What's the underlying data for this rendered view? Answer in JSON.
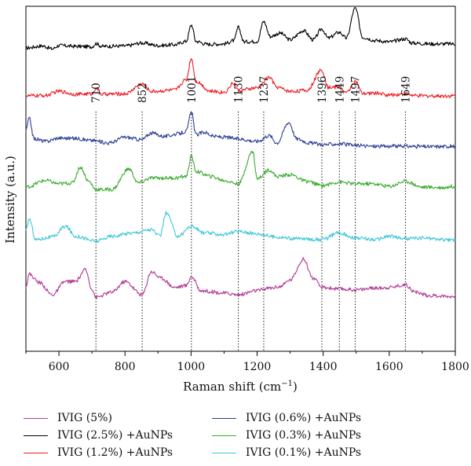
{
  "chart_data": {
    "type": "line",
    "xlabel": "Raman shift (cm",
    "xlabel_sup": "−1",
    "xlabel_end": ")",
    "ylabel": "Intensity (a.u.)",
    "xlim": [
      500,
      1800
    ],
    "xticks": [
      600,
      800,
      1000,
      1200,
      1400,
      1600,
      1800
    ],
    "peak_markers": [
      710,
      852,
      1001,
      1130,
      1237,
      1396,
      1449,
      1497,
      1649
    ],
    "peak_marker_lines": [
      712,
      852,
      1001,
      1143,
      1220,
      1396,
      1449,
      1497,
      1649
    ],
    "series": [
      {
        "name": "IVIG (2.5%) +AuNPs",
        "color": "#000000",
        "baseline": 0.86,
        "points": [
          [
            500,
            0.8
          ],
          [
            550,
            1.05
          ],
          [
            580,
            0.7
          ],
          [
            600,
            1.1
          ],
          [
            650,
            1.0
          ],
          [
            700,
            0.95
          ],
          [
            712,
            1.35
          ],
          [
            730,
            1.0
          ],
          [
            800,
            1.05
          ],
          [
            852,
            1.4
          ],
          [
            900,
            1.1
          ],
          [
            950,
            1.2
          ],
          [
            985,
            1.6
          ],
          [
            1001,
            3.6
          ],
          [
            1015,
            1.6
          ],
          [
            1050,
            1.25
          ],
          [
            1100,
            1.3
          ],
          [
            1130,
            1.7
          ],
          [
            1143,
            3.3
          ],
          [
            1160,
            1.55
          ],
          [
            1200,
            1.6
          ],
          [
            1220,
            4.0
          ],
          [
            1240,
            2.2
          ],
          [
            1270,
            2.6
          ],
          [
            1300,
            1.8
          ],
          [
            1340,
            2.9
          ],
          [
            1370,
            1.8
          ],
          [
            1396,
            3.1
          ],
          [
            1415,
            2.0
          ],
          [
            1449,
            2.7
          ],
          [
            1470,
            2.0
          ],
          [
            1497,
            5.6
          ],
          [
            1520,
            2.1
          ],
          [
            1560,
            1.7
          ],
          [
            1600,
            1.55
          ],
          [
            1649,
            1.9
          ],
          [
            1670,
            1.4
          ],
          [
            1720,
            1.3
          ],
          [
            1800,
            1.3
          ]
        ]
      },
      {
        "name": "IVIG (1.2%) +AuNPs",
        "color": "#ee1c23",
        "baseline": 0.72,
        "points": [
          [
            500,
            0.85
          ],
          [
            560,
            0.9
          ],
          [
            600,
            1.4
          ],
          [
            650,
            1.05
          ],
          [
            700,
            1.1
          ],
          [
            712,
            1.8
          ],
          [
            730,
            1.05
          ],
          [
            800,
            1.1
          ],
          [
            852,
            2.3
          ],
          [
            880,
            1.4
          ],
          [
            950,
            1.55
          ],
          [
            985,
            2.8
          ],
          [
            1001,
            5.4
          ],
          [
            1015,
            2.6
          ],
          [
            1060,
            1.4
          ],
          [
            1100,
            1.3
          ],
          [
            1130,
            2.4
          ],
          [
            1143,
            1.5
          ],
          [
            1200,
            1.8
          ],
          [
            1237,
            3.1
          ],
          [
            1260,
            1.9
          ],
          [
            1300,
            1.4
          ],
          [
            1350,
            1.5
          ],
          [
            1396,
            4.0
          ],
          [
            1415,
            1.9
          ],
          [
            1449,
            1.9
          ],
          [
            1470,
            1.2
          ],
          [
            1497,
            2.6
          ],
          [
            1520,
            1.1
          ],
          [
            1560,
            1.2
          ],
          [
            1600,
            0.95
          ],
          [
            1649,
            1.1
          ],
          [
            1680,
            0.85
          ],
          [
            1800,
            0.85
          ]
        ]
      },
      {
        "name": "IVIG (0.6%) +AuNPs",
        "color": "#2b3e95",
        "baseline": 0.58,
        "points": [
          [
            500,
            2.5
          ],
          [
            510,
            4.0
          ],
          [
            525,
            1.5
          ],
          [
            560,
            1.2
          ],
          [
            600,
            1.6
          ],
          [
            650,
            1.55
          ],
          [
            700,
            1.3
          ],
          [
            752,
            1.0
          ],
          [
            800,
            1.7
          ],
          [
            850,
            1.4
          ],
          [
            880,
            2.2
          ],
          [
            920,
            1.8
          ],
          [
            960,
            2.1
          ],
          [
            985,
            2.4
          ],
          [
            1001,
            4.7
          ],
          [
            1015,
            2.0
          ],
          [
            1040,
            2.3
          ],
          [
            1070,
            1.8
          ],
          [
            1100,
            1.7
          ],
          [
            1143,
            1.5
          ],
          [
            1200,
            1.2
          ],
          [
            1237,
            1.9
          ],
          [
            1260,
            1.0
          ],
          [
            1296,
            3.5
          ],
          [
            1320,
            1.5
          ],
          [
            1360,
            1.0
          ],
          [
            1400,
            0.8
          ],
          [
            1449,
            0.9
          ],
          [
            1497,
            0.7
          ],
          [
            1550,
            0.6
          ],
          [
            1600,
            0.6
          ],
          [
            1649,
            0.6
          ],
          [
            1720,
            0.55
          ],
          [
            1800,
            0.6
          ]
        ]
      },
      {
        "name": "IVIG (0.3%) +AuNPs",
        "color": "#3aab2e",
        "baseline": 0.44,
        "points": [
          [
            500,
            1.5
          ],
          [
            560,
            2.3
          ],
          [
            600,
            1.9
          ],
          [
            640,
            2.0
          ],
          [
            665,
            3.9
          ],
          [
            690,
            2.2
          ],
          [
            712,
            1.2
          ],
          [
            760,
            1.2
          ],
          [
            812,
            3.7
          ],
          [
            840,
            2.0
          ],
          [
            880,
            2.6
          ],
          [
            950,
            2.6
          ],
          [
            985,
            2.8
          ],
          [
            1001,
            5.2
          ],
          [
            1015,
            3.4
          ],
          [
            1060,
            2.8
          ],
          [
            1100,
            2.3
          ],
          [
            1143,
            1.9
          ],
          [
            1187,
            5.8
          ],
          [
            1200,
            2.5
          ],
          [
            1237,
            3.6
          ],
          [
            1260,
            2.8
          ],
          [
            1300,
            3.0
          ],
          [
            1350,
            2.2
          ],
          [
            1396,
            1.7
          ],
          [
            1449,
            2.1
          ],
          [
            1497,
            1.9
          ],
          [
            1550,
            1.9
          ],
          [
            1600,
            1.6
          ],
          [
            1649,
            2.2
          ],
          [
            1700,
            1.5
          ],
          [
            1760,
            1.45
          ],
          [
            1800,
            1.6
          ]
        ]
      },
      {
        "name": "IVIG (0.1%) +AuNPs",
        "color": "#3fc7d8",
        "baseline": 0.3,
        "points": [
          [
            500,
            2.0
          ],
          [
            510,
            3.5
          ],
          [
            530,
            1.0
          ],
          [
            580,
            1.3
          ],
          [
            620,
            2.6
          ],
          [
            650,
            1.4
          ],
          [
            712,
            0.8
          ],
          [
            760,
            1.4
          ],
          [
            820,
            1.8
          ],
          [
            880,
            2.2
          ],
          [
            905,
            1.4
          ],
          [
            925,
            4.2
          ],
          [
            960,
            1.4
          ],
          [
            1001,
            2.6
          ],
          [
            1040,
            1.8
          ],
          [
            1100,
            1.6
          ],
          [
            1143,
            2.0
          ],
          [
            1200,
            1.7
          ],
          [
            1260,
            1.3
          ],
          [
            1320,
            1.1
          ],
          [
            1396,
            1.0
          ],
          [
            1449,
            1.8
          ],
          [
            1497,
            1.2
          ],
          [
            1560,
            1.0
          ],
          [
            1600,
            1.4
          ],
          [
            1650,
            1.1
          ],
          [
            1700,
            1.2
          ],
          [
            1760,
            1.0
          ],
          [
            1800,
            0.9
          ]
        ]
      },
      {
        "name": "IVIG (5%)",
        "color": "#b23b94",
        "baseline": 0.14,
        "points": [
          [
            500,
            2.0
          ],
          [
            510,
            3.5
          ],
          [
            540,
            2.5
          ],
          [
            580,
            1.0
          ],
          [
            620,
            2.6
          ],
          [
            650,
            2.6
          ],
          [
            680,
            4.0
          ],
          [
            700,
            1.7
          ],
          [
            712,
            0.7
          ],
          [
            760,
            1.3
          ],
          [
            800,
            2.6
          ],
          [
            852,
            1.0
          ],
          [
            880,
            3.8
          ],
          [
            910,
            3.0
          ],
          [
            950,
            1.9
          ],
          [
            985,
            2.1
          ],
          [
            1001,
            3.2
          ],
          [
            1030,
            1.5
          ],
          [
            1100,
            1.2
          ],
          [
            1143,
            1.0
          ],
          [
            1200,
            1.5
          ],
          [
            1237,
            1.8
          ],
          [
            1270,
            2.0
          ],
          [
            1300,
            2.8
          ],
          [
            1340,
            5.3
          ],
          [
            1370,
            3.0
          ],
          [
            1396,
            1.9
          ],
          [
            1449,
            1.7
          ],
          [
            1497,
            1.6
          ],
          [
            1560,
            1.8
          ],
          [
            1600,
            1.9
          ],
          [
            1649,
            2.2
          ],
          [
            1680,
            1.3
          ],
          [
            1720,
            0.9
          ],
          [
            1800,
            0.8
          ]
        ]
      }
    ],
    "legend": {
      "placement": "bottom",
      "columns": [
        [
          "IVIG (5%)",
          "IVIG (2.5%) +AuNPs",
          "IVIG (1.2%) +AuNPs"
        ],
        [
          "IVIG (0.6%) +AuNPs",
          "IVIG (0.3%) +AuNPs",
          "IVIG (0.1%) +AuNPs"
        ]
      ]
    },
    "grid": false
  }
}
